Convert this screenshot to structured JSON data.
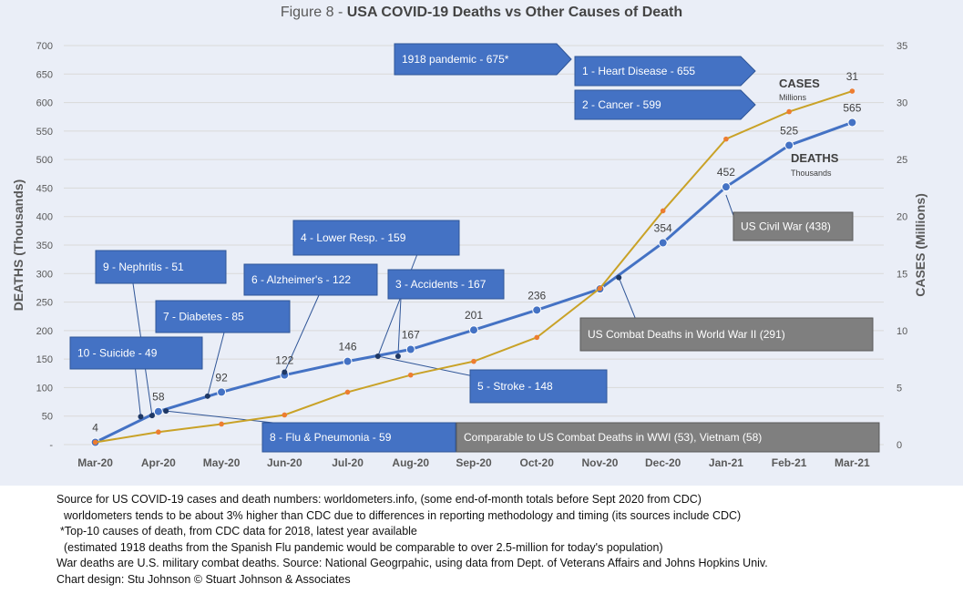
{
  "title": {
    "prefix": "Figure 8 - ",
    "main": "USA COVID-19 Deaths vs Other Causes of Death"
  },
  "chart_data": {
    "type": "line",
    "categories": [
      "Mar-20",
      "Apr-20",
      "May-20",
      "Jun-20",
      "Jul-20",
      "Aug-20",
      "Sep-20",
      "Oct-20",
      "Nov-20",
      "Dec-20",
      "Jan-21",
      "Feb-21",
      "Mar-21"
    ],
    "ylabel": "DEATHS (Thousands)",
    "y2label": "CASES (Millions)",
    "ylim": [
      0,
      700
    ],
    "y2lim": [
      0,
      35
    ],
    "yticks": [
      "-",
      "50",
      "100",
      "150",
      "200",
      "250",
      "300",
      "350",
      "400",
      "450",
      "500",
      "550",
      "600",
      "650",
      "700"
    ],
    "y2ticks": [
      "0",
      "5",
      "10",
      "15",
      "20",
      "25",
      "30",
      "35"
    ],
    "grid": true,
    "series": [
      {
        "name": "DEATHS",
        "sub": "Thousands",
        "axis": "left",
        "color": "#4472c4",
        "values": [
          4,
          58,
          92,
          122,
          146,
          167,
          201,
          236,
          273,
          354,
          452,
          525,
          565
        ],
        "labels": [
          "4",
          "58",
          "92",
          "122",
          "146",
          "167",
          "201",
          "236",
          "",
          "354",
          "452",
          "525",
          "565"
        ]
      },
      {
        "name": "CASES",
        "sub": "Millions",
        "axis": "right",
        "color": "#c9a227",
        "values": [
          0.2,
          1.1,
          1.8,
          2.6,
          4.6,
          6.1,
          7.3,
          9.4,
          13.7,
          20.5,
          26.8,
          29.2,
          31
        ],
        "labels": [
          "",
          "",
          "",
          "",
          "",
          "",
          "",
          "",
          "",
          "",
          "",
          "",
          "31"
        ]
      }
    ],
    "reference_points": [
      {
        "cause": "10 - Suicide - 49",
        "value": 49
      },
      {
        "cause": "9 - Nephritis - 51",
        "value": 51
      },
      {
        "cause": "8 - Flu & Pneumonia - 59",
        "value": 59
      },
      {
        "cause": "7 - Diabetes - 85",
        "value": 85
      },
      {
        "cause": "6 - Alzheimer's - 122",
        "value": 122
      },
      {
        "cause": "5 - Stroke - 148",
        "value": 148
      },
      {
        "cause": "4 - Lower Resp. - 159",
        "value": 159
      },
      {
        "cause": "3 - Accidents - 167",
        "value": 167
      },
      {
        "cause": "US Combat Deaths in World War II (291)",
        "value": 291
      },
      {
        "cause": "US Civil War (438)",
        "value": 438
      }
    ],
    "callouts": {
      "pandemic1918": "1918 pandemic - 675*",
      "heart": "1 - Heart Disease - 655",
      "cancer": "2 - Cancer - 599",
      "lowerResp": "4 - Lower Resp.  - 159",
      "nephritis": "9 - Nephritis - 51",
      "alzheimers": "6 - Alzheimer's - 122",
      "accidents": "3 - Accidents - 167",
      "diabetes": "7 - Diabetes - 85",
      "suicide": "10 - Suicide - 49",
      "stroke": "5 - Stroke - 148",
      "flu": "8 - Flu & Pneumonia - 59",
      "wwi": "Comparable to US Combat Deaths in WWI (53), Vietnam (58)",
      "ww2": "US Combat Deaths in World War II (291)",
      "civilwar": "US Civil War (438)"
    },
    "colors": {
      "callout_blue": "#4472c4",
      "callout_gray": "#7f7f7f",
      "deaths": "#4472c4",
      "cases": "#c9a227",
      "panel": "#eaeef7"
    }
  },
  "notes": [
    "Source for US COVID-19 cases and death numbers: worldometers.info, (some end-of-month totals before Sept 2020 from CDC)",
    "worldometers tends to be about 3% higher than CDC due to differences in reporting methodology and timing (its sources include CDC)",
    "*Top-10 causes of death, from CDC data for 2018, latest year available",
    "(estimated 1918 deaths from the Spanish Flu pandemic would be comparable to over 2.5-million for today's population)",
    "War deaths are U.S. military combat deaths.  Source: National Geogrpahic, using data from Dept. of Veterans Affairs and Johns Hopkins Univ.",
    "Chart design: Stu Johnson © Stuart Johnson & Associates"
  ]
}
